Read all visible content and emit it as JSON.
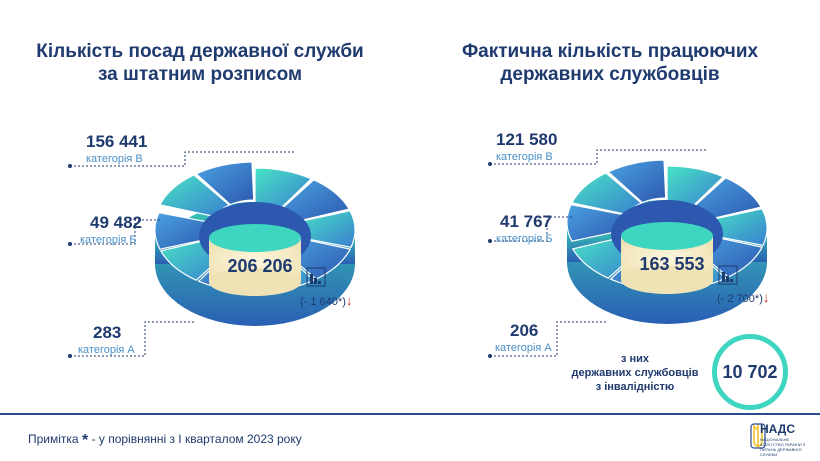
{
  "chart_data": [
    {
      "type": "pie",
      "title": [
        "Кількість посад державної служби",
        "за штатним розписом"
      ],
      "series": [
        {
          "label": "категорія В",
          "value": 156441,
          "value_text": "156 441"
        },
        {
          "label": "категорія Б",
          "value": 49482,
          "value_text": "49 482"
        },
        {
          "label": "категорія А",
          "value": 283,
          "value_text": "283"
        }
      ],
      "total_text": "206 206",
      "change_text": "(- 1 640*)"
    },
    {
      "type": "pie",
      "title": [
        "Фактична кількість працюючих",
        "державних службовців"
      ],
      "series": [
        {
          "label": "категорія В",
          "value": 121580,
          "value_text": "121 580"
        },
        {
          "label": "категорія Б",
          "value": 41767,
          "value_text": "41 767"
        },
        {
          "label": "категорія А",
          "value": 206,
          "value_text": "206"
        }
      ],
      "total_text": "163 553",
      "change_text": "(- 2 700*)"
    }
  ],
  "disability": {
    "lines": [
      "з них",
      "державних службовців",
      "з інвалідністю"
    ],
    "value_text": "10 702"
  },
  "footnote": {
    "prefix": "Примітка",
    "star": "*",
    "text": "- у порівнянні з І кварталом 2023 року"
  },
  "logo": {
    "name": "НАДС",
    "subtitle": "НАЦІОНАЛЬНЕ АГЕНТСТВО УКРАЇНИ З ПИТАНЬ ДЕРЖАВНОЇ СЛУЖБИ"
  },
  "colors": {
    "navy": "#1f3a6e",
    "teal": "#3ed6c0",
    "blue": "#3a6fc4",
    "accent_red": "#d62828"
  }
}
